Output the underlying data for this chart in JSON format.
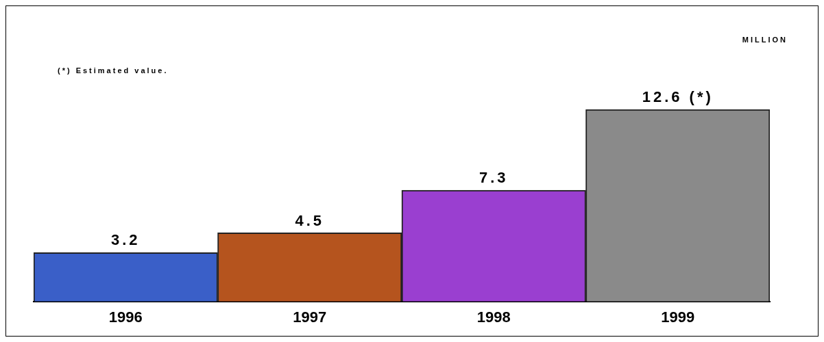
{
  "chart_data": {
    "type": "bar",
    "categories": [
      "1996",
      "1997",
      "1998",
      "1999"
    ],
    "values": [
      3.2,
      4.5,
      7.3,
      12.6
    ],
    "colors": [
      "#3a5fc8",
      "#b5541e",
      "#9a3fd0",
      "#8a8a8a"
    ],
    "value_labels": [
      "3.2",
      "4.5",
      "7.3",
      "12.6 (*)"
    ],
    "annotations": [
      "(*) Estimated value.",
      "MILLION"
    ],
    "grid": false,
    "legend": false
  }
}
